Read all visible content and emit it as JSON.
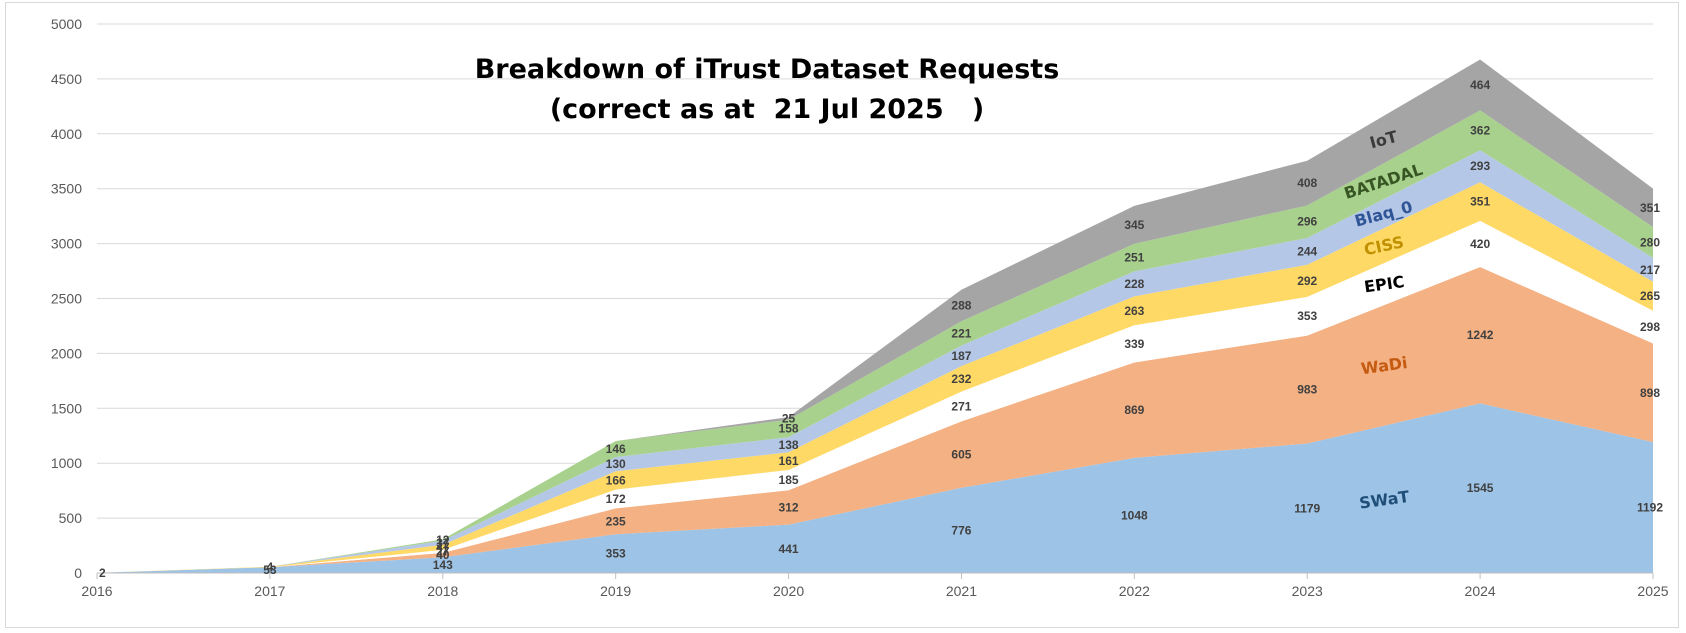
{
  "chart_data": {
    "type": "area",
    "stacked": true,
    "title": "Breakdown of iTrust Dataset Requests",
    "subtitle": "(correct as at  21 Jul 2025   )",
    "x": [
      "2016",
      "2017",
      "2018",
      "2019",
      "2020",
      "2021",
      "2022",
      "2023",
      "2024",
      "2025"
    ],
    "ylim": [
      0,
      5000
    ],
    "yticks": [
      0,
      500,
      1000,
      1500,
      2000,
      2500,
      3000,
      3500,
      4000,
      4500,
      5000
    ],
    "grid": true,
    "legend": "none (series labeled inline)",
    "series": [
      {
        "name": "SWaT",
        "color": "#9dc3e6",
        "label_color": "#1f4e79",
        "label_angle": -8,
        "values": [
          2,
          53,
          143,
          353,
          441,
          776,
          1048,
          1179,
          1545,
          1192
        ]
      },
      {
        "name": "WaDi",
        "color": "#f4b183",
        "label_color": "#c55a11",
        "label_angle": -8,
        "values": [
          0,
          0,
          40,
          235,
          312,
          605,
          869,
          983,
          1242,
          898
        ]
      },
      {
        "name": "EPIC",
        "color": "#ffffff",
        "label_color": "#000000",
        "label_angle": -8,
        "values": [
          0,
          0,
          27,
          172,
          185,
          271,
          339,
          353,
          420,
          298
        ]
      },
      {
        "name": "CISS",
        "color": "#ffd966",
        "label_color": "#bf9000",
        "label_angle": -12,
        "values": [
          0,
          4,
          47,
          166,
          161,
          232,
          263,
          292,
          351,
          265
        ]
      },
      {
        "name": "Blaq_0",
        "color": "#b4c7e7",
        "label_color": "#2f5597",
        "label_angle": -15,
        "values": [
          0,
          0,
          37,
          130,
          138,
          187,
          228,
          244,
          293,
          217
        ]
      },
      {
        "name": "BATADAL",
        "color": "#a9d18e",
        "label_color": "#375623",
        "label_angle": -18,
        "values": [
          0,
          0,
          12,
          146,
          158,
          221,
          251,
          296,
          362,
          280
        ]
      },
      {
        "name": "IoT",
        "color": "#a5a5a5",
        "label_color": "#3a3a3a",
        "label_angle": -15,
        "values": [
          0,
          0,
          0,
          0,
          25,
          288,
          345,
          408,
          464,
          351
        ]
      }
    ],
    "data_labels_shown": [
      [
        "2"
      ],
      [
        "53",
        "4"
      ],
      [
        "143",
        "40",
        "27",
        "47",
        "37",
        "12"
      ],
      [
        "353",
        "235",
        "172",
        "166",
        "130",
        "146"
      ],
      [
        "441",
        "312",
        "185",
        "161",
        "138",
        "158",
        "25"
      ],
      [
        "776",
        "605",
        "271",
        "232",
        "187",
        "221",
        "288"
      ],
      [
        "1048",
        "869",
        "339",
        "263",
        "228",
        "251",
        "345"
      ],
      [
        "1179",
        "983",
        "353",
        "292",
        "244",
        "296",
        "408"
      ],
      [
        "1545",
        "1242",
        "420",
        "351",
        "293",
        "362",
        "464"
      ],
      [
        "1192",
        "898",
        "298",
        "265",
        "217",
        "280",
        "351"
      ]
    ]
  },
  "colors": {
    "grid": "#d9d9d9",
    "axis": "#bfbfbf",
    "tick_text": "#595959",
    "title": "#000000",
    "data_label": "#404040"
  }
}
